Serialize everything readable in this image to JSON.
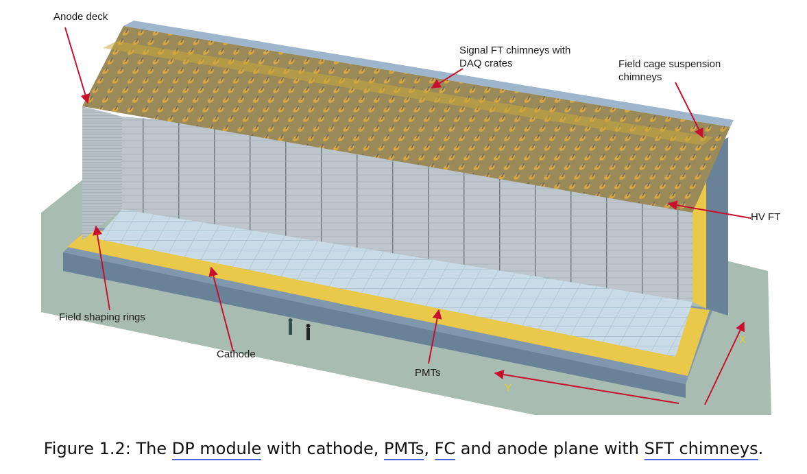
{
  "figure": {
    "labels": {
      "anode_deck": "Anode deck",
      "signal_ft_line1": "Signal FT chimneys with",
      "signal_ft_line2": "DAQ crates",
      "fc_susp_line1": "Field cage suspension",
      "fc_susp_line2": "chimneys",
      "hv_ft": "HV FT",
      "field_shaping": "Field shaping rings",
      "cathode": "Cathode",
      "pmts": "PMTs",
      "axis_x": "X",
      "axis_y": "Y"
    },
    "colors": {
      "ground": "#a9bcb2",
      "frame_yellow": "#e9c84a",
      "steel_blue": "#8aa3b8",
      "arrow_red": "#c8102e",
      "axis_yellow": "#e8d020"
    }
  },
  "caption": {
    "prefix": "Figure 1.2: The ",
    "link1": "DP module",
    "text2": " with cathode, ",
    "link2": "PMTs",
    "text3": ", ",
    "link3": "FC",
    "text4": " and anode plane with ",
    "link4": "SFT chimneys",
    "suffix": "."
  }
}
